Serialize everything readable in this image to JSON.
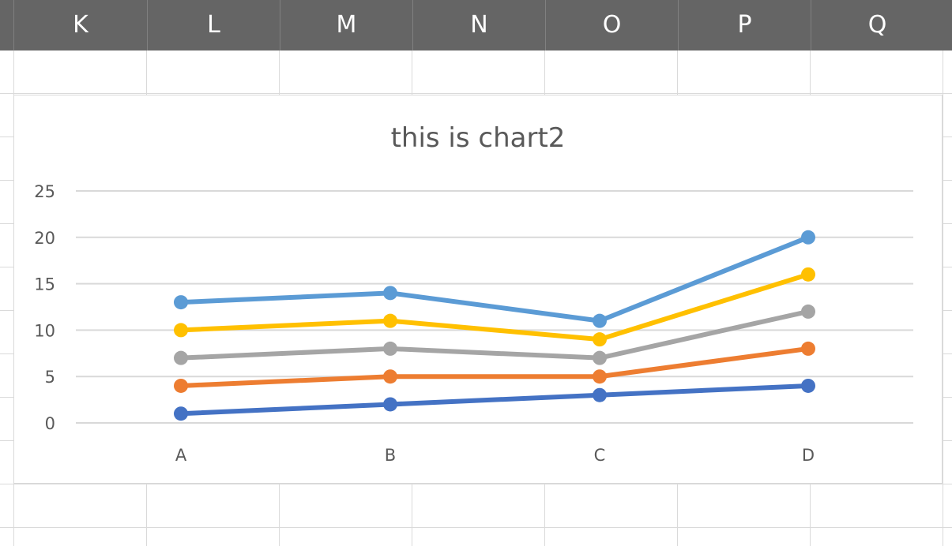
{
  "spreadsheet": {
    "columns": [
      "K",
      "L",
      "M",
      "N",
      "O",
      "P",
      "Q"
    ]
  },
  "chart_data": {
    "type": "line",
    "title": "this is chart2",
    "categories": [
      "A",
      "B",
      "C",
      "D"
    ],
    "ylim": [
      0,
      25
    ],
    "yticks": [
      0,
      5,
      10,
      15,
      20,
      25
    ],
    "grid": true,
    "legend": "none",
    "series": [
      {
        "values": [
          1,
          2,
          3,
          4
        ],
        "color": "#4472c4"
      },
      {
        "values": [
          4,
          5,
          5,
          8
        ],
        "color": "#ed7d31"
      },
      {
        "values": [
          7,
          8,
          7,
          12
        ],
        "color": "#a5a5a5"
      },
      {
        "values": [
          10,
          11,
          9,
          16
        ],
        "color": "#ffc000"
      },
      {
        "values": [
          13,
          14,
          11,
          20
        ],
        "color": "#5b9bd5"
      }
    ]
  }
}
